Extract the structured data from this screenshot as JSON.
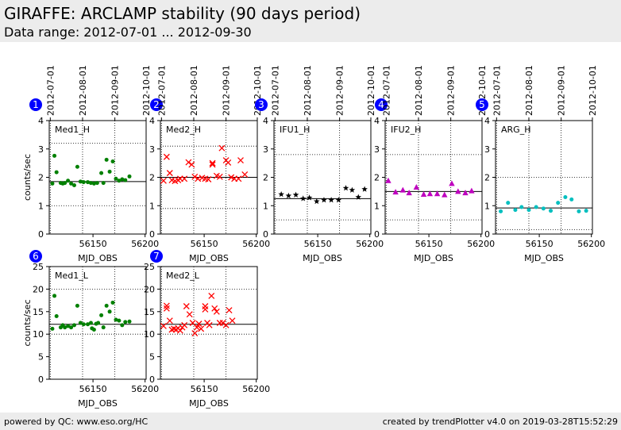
{
  "header": {
    "title": "GIRAFFE: ARCLAMP stability (90 days period)",
    "subtitle": "Data range: 2012-07-01 ... 2012-09-30"
  },
  "footer": {
    "left": "powered by QC: www.eso.org/HC",
    "right": "created by trendPlotter v4.0 on 2019-03-28T15:52:29"
  },
  "chart_data": [
    {
      "type": "scatter",
      "number": "1",
      "label": "Med1_H",
      "color": "#008000",
      "marker": "circle",
      "xlabel": "MJD_OBS",
      "ylabel": "counts/sec",
      "xlim": [
        56108,
        56201
      ],
      "ylim": [
        0,
        4
      ],
      "xticks": [
        56150,
        56200
      ],
      "yticks": [
        0,
        1,
        2,
        3,
        4
      ],
      "top_date_ticks": [
        {
          "label": "2012-07-01",
          "mjd": 56109
        },
        {
          "label": "2012-08-01",
          "mjd": 56140
        },
        {
          "label": "2012-09-01",
          "mjd": 56171
        },
        {
          "label": "2012-10-01",
          "mjd": 56201
        }
      ],
      "hlines": {
        "median": 1.85,
        "upper": 3.2,
        "lower": 1.0
      },
      "points": [
        [
          56111,
          1.78
        ],
        [
          56113,
          2.76
        ],
        [
          56115,
          2.18
        ],
        [
          56119,
          1.8
        ],
        [
          56121,
          1.78
        ],
        [
          56123,
          1.8
        ],
        [
          56126,
          1.88
        ],
        [
          56129,
          1.78
        ],
        [
          56132,
          1.72
        ],
        [
          56135,
          2.37
        ],
        [
          56138,
          1.85
        ],
        [
          56141,
          1.83
        ],
        [
          56145,
          1.83
        ],
        [
          56148,
          1.8
        ],
        [
          56151,
          1.78
        ],
        [
          56154,
          1.8
        ],
        [
          56158,
          2.15
        ],
        [
          56160,
          1.8
        ],
        [
          56163,
          2.62
        ],
        [
          56166,
          2.2
        ],
        [
          56169,
          2.56
        ],
        [
          56172,
          1.95
        ],
        [
          56175,
          1.88
        ],
        [
          56178,
          1.93
        ],
        [
          56181,
          1.9
        ],
        [
          56185,
          2.03
        ]
      ]
    },
    {
      "type": "scatter",
      "number": "2",
      "label": "Med2_H",
      "color": "#ff0000",
      "marker": "x",
      "xlabel": "MJD_OBS",
      "ylabel": "",
      "xlim": [
        56108,
        56201
      ],
      "ylim": [
        0,
        4
      ],
      "xticks": [
        56150,
        56200
      ],
      "yticks": [
        0,
        1,
        2,
        3,
        4
      ],
      "top_date_ticks": [
        {
          "label": "2012-07-01",
          "mjd": 56109
        },
        {
          "label": "2012-08-01",
          "mjd": 56140
        },
        {
          "label": "2012-09-01",
          "mjd": 56171
        },
        {
          "label": "2012-10-01",
          "mjd": 56201
        }
      ],
      "hlines": {
        "median": 2.0,
        "upper": 3.1,
        "lower": 0.9
      },
      "points": [
        [
          56111,
          1.88
        ],
        [
          56114,
          2.72
        ],
        [
          56117,
          2.15
        ],
        [
          56119,
          1.9
        ],
        [
          56122,
          1.87
        ],
        [
          56125,
          1.9
        ],
        [
          56127,
          1.95
        ],
        [
          56131,
          1.95
        ],
        [
          56135,
          2.53
        ],
        [
          56138,
          2.45
        ],
        [
          56141,
          2.02
        ],
        [
          56144,
          1.95
        ],
        [
          56148,
          1.98
        ],
        [
          56151,
          1.95
        ],
        [
          56154,
          1.93
        ],
        [
          56158,
          2.5
        ],
        [
          56158,
          2.45
        ],
        [
          56162,
          2.05
        ],
        [
          56165,
          2.02
        ],
        [
          56167,
          3.03
        ],
        [
          56171,
          2.6
        ],
        [
          56173,
          2.52
        ],
        [
          56176,
          2.0
        ],
        [
          56179,
          1.95
        ],
        [
          56183,
          1.95
        ],
        [
          56185,
          2.6
        ],
        [
          56189,
          2.1
        ]
      ]
    },
    {
      "type": "scatter",
      "number": "3",
      "label": "IFU1_H",
      "color": "#000000",
      "marker": "star",
      "xlabel": "MJD_OBS",
      "ylabel": "",
      "xlim": [
        56108,
        56201
      ],
      "ylim": [
        0,
        4
      ],
      "xticks": [
        56150,
        56200
      ],
      "yticks": [
        0,
        1,
        2,
        3,
        4
      ],
      "top_date_ticks": [
        {
          "label": "2012-07-01",
          "mjd": 56109
        },
        {
          "label": "2012-08-01",
          "mjd": 56140
        },
        {
          "label": "2012-09-01",
          "mjd": 56171
        },
        {
          "label": "2012-10-01",
          "mjd": 56201
        }
      ],
      "hlines": {
        "median": 1.25,
        "upper": 2.8,
        "lower": 0.5
      },
      "points": [
        [
          56115,
          1.4
        ],
        [
          56122,
          1.35
        ],
        [
          56129,
          1.38
        ],
        [
          56136,
          1.25
        ],
        [
          56142,
          1.28
        ],
        [
          56149,
          1.15
        ],
        [
          56156,
          1.2
        ],
        [
          56163,
          1.2
        ],
        [
          56170,
          1.2
        ],
        [
          56177,
          1.62
        ],
        [
          56183,
          1.55
        ],
        [
          56189,
          1.3
        ],
        [
          56195,
          1.58
        ]
      ]
    },
    {
      "type": "scatter",
      "number": "4",
      "label": "IFU2_H",
      "color": "#bf00bf",
      "marker": "triangle",
      "xlabel": "MJD_OBS",
      "ylabel": "",
      "xlim": [
        56108,
        56201
      ],
      "ylim": [
        0,
        4
      ],
      "xticks": [
        56150,
        56200
      ],
      "yticks": [
        0,
        1,
        2,
        3,
        4
      ],
      "top_date_ticks": [
        {
          "label": "2012-07-01",
          "mjd": 56109
        },
        {
          "label": "2012-08-01",
          "mjd": 56140
        },
        {
          "label": "2012-09-01",
          "mjd": 56171
        },
        {
          "label": "2012-10-01",
          "mjd": 56201
        }
      ],
      "hlines": {
        "median": 1.5,
        "upper": 2.8,
        "lower": 0.5
      },
      "points": [
        [
          56111,
          1.88
        ],
        [
          56118,
          1.48
        ],
        [
          56125,
          1.55
        ],
        [
          56131,
          1.45
        ],
        [
          56138,
          1.65
        ],
        [
          56145,
          1.4
        ],
        [
          56151,
          1.42
        ],
        [
          56158,
          1.42
        ],
        [
          56165,
          1.38
        ],
        [
          56172,
          1.78
        ],
        [
          56178,
          1.5
        ],
        [
          56185,
          1.45
        ],
        [
          56191,
          1.52
        ]
      ]
    },
    {
      "type": "scatter",
      "number": "5",
      "label": "ARG_H",
      "color": "#00bfbf",
      "marker": "circle",
      "xlabel": "MJD_OBS",
      "ylabel": "",
      "xlim": [
        56108,
        56201
      ],
      "ylim": [
        0,
        4
      ],
      "xticks": [
        56150,
        56200
      ],
      "yticks": [
        0,
        1,
        2,
        3,
        4
      ],
      "top_date_ticks": [
        {
          "label": "2012-07-01",
          "mjd": 56109
        },
        {
          "label": "2012-08-01",
          "mjd": 56140
        },
        {
          "label": "2012-09-01",
          "mjd": 56171
        },
        {
          "label": "2012-10-01",
          "mjd": 56201
        }
      ],
      "hlines": {
        "median": 0.92,
        "upper": 2.0,
        "lower": 0.15
      },
      "points": [
        [
          56113,
          0.8
        ],
        [
          56120,
          1.1
        ],
        [
          56127,
          0.85
        ],
        [
          56133,
          0.95
        ],
        [
          56140,
          0.85
        ],
        [
          56147,
          0.95
        ],
        [
          56154,
          0.9
        ],
        [
          56161,
          0.82
        ],
        [
          56168,
          1.1
        ],
        [
          56175,
          1.3
        ],
        [
          56181,
          1.22
        ],
        [
          56188,
          0.8
        ],
        [
          56195,
          0.82
        ]
      ]
    },
    {
      "type": "scatter",
      "number": "6",
      "label": "Med1_L",
      "color": "#008000",
      "marker": "circle",
      "xlabel": "MJD_OBS",
      "ylabel": "counts/sec",
      "xlim": [
        56108,
        56201
      ],
      "ylim": [
        0,
        25
      ],
      "xticks": [
        56150,
        56200
      ],
      "yticks": [
        0,
        5,
        10,
        15,
        20,
        25
      ],
      "hlines": {
        "median": 12.2,
        "upper": 20.0,
        "lower": 10.0
      },
      "points": [
        [
          56111,
          11.2
        ],
        [
          56113,
          18.5
        ],
        [
          56115,
          14.0
        ],
        [
          56119,
          11.5
        ],
        [
          56121,
          12.0
        ],
        [
          56123,
          11.5
        ],
        [
          56126,
          11.8
        ],
        [
          56129,
          11.5
        ],
        [
          56132,
          12.0
        ],
        [
          56135,
          16.3
        ],
        [
          56138,
          12.5
        ],
        [
          56141,
          12.2
        ],
        [
          56145,
          12.2
        ],
        [
          56148,
          12.5
        ],
        [
          56149,
          11.3
        ],
        [
          56151,
          11.0
        ],
        [
          56153,
          12.3
        ],
        [
          56155,
          12.5
        ],
        [
          56158,
          14.2
        ],
        [
          56160,
          11.5
        ],
        [
          56163,
          16.3
        ],
        [
          56166,
          15.0
        ],
        [
          56169,
          17.0
        ],
        [
          56172,
          13.2
        ],
        [
          56175,
          13.0
        ],
        [
          56178,
          12.0
        ],
        [
          56181,
          12.7
        ],
        [
          56185,
          12.8
        ]
      ]
    },
    {
      "type": "scatter",
      "number": "7",
      "label": "Med2_L",
      "color": "#ff0000",
      "marker": "x",
      "xlabel": "MJD_OBS",
      "ylabel": "",
      "xlim": [
        56108,
        56201
      ],
      "ylim": [
        0,
        25
      ],
      "xticks": [
        56150,
        56200
      ],
      "yticks": [
        0,
        5,
        10,
        15,
        20,
        25
      ],
      "hlines": {
        "median": 12.2,
        "upper": 20.0,
        "lower": 10.0
      },
      "points": [
        [
          56111,
          11.8
        ],
        [
          56114,
          16.3
        ],
        [
          56114,
          15.7
        ],
        [
          56117,
          13.0
        ],
        [
          56119,
          11.0
        ],
        [
          56121,
          11.2
        ],
        [
          56123,
          11.0
        ],
        [
          56125,
          11.3
        ],
        [
          56127,
          10.8
        ],
        [
          56129,
          11.5
        ],
        [
          56131,
          12.0
        ],
        [
          56133,
          16.2
        ],
        [
          56136,
          14.4
        ],
        [
          56139,
          12.5
        ],
        [
          56141,
          10.2
        ],
        [
          56143,
          11.5
        ],
        [
          56145,
          12.3
        ],
        [
          56147,
          11.2
        ],
        [
          56151,
          16.2
        ],
        [
          56151,
          15.5
        ],
        [
          56153,
          12.5
        ],
        [
          56155,
          12.0
        ],
        [
          56157,
          18.5
        ],
        [
          56160,
          15.7
        ],
        [
          56162,
          15.0
        ],
        [
          56165,
          12.5
        ],
        [
          56168,
          12.5
        ],
        [
          56171,
          12.0
        ],
        [
          56174,
          15.3
        ],
        [
          56177,
          13.0
        ]
      ]
    }
  ]
}
